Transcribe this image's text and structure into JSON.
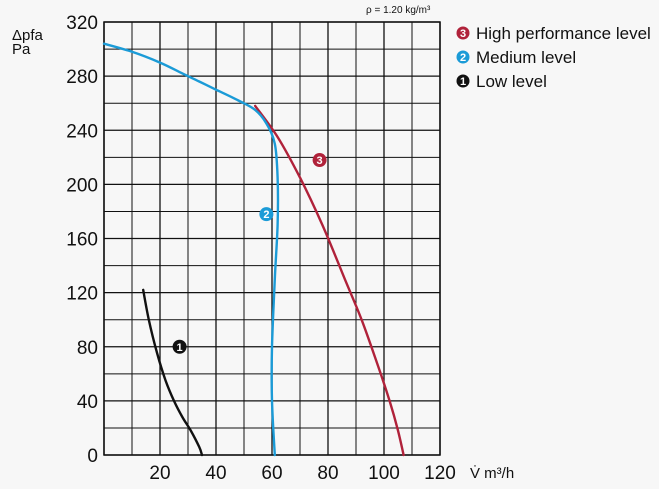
{
  "chart_data": {
    "type": "line",
    "note": "ρ = 1.20 kg/m³",
    "ylabel_line1": "Δpfa",
    "ylabel_line2": "Pa",
    "xlabel": "V̇ m³/h",
    "xlim": [
      0,
      120
    ],
    "ylim": [
      0,
      320
    ],
    "x_ticks": [
      "20",
      "40",
      "60",
      "80",
      "100",
      "120"
    ],
    "y_ticks": [
      "0",
      "40",
      "80",
      "120",
      "160",
      "200",
      "240",
      "280",
      "320"
    ],
    "grid": true,
    "legend_position": "top-right",
    "series": [
      {
        "name": "High performance level",
        "marker_number": "3",
        "color": "#b0223a",
        "x": [
          54,
          62,
          70,
          78,
          86,
          92,
          98,
          102,
          105,
          107
        ],
        "y": [
          258,
          235,
          205,
          170,
          130,
          100,
          65,
          40,
          18,
          0
        ]
      },
      {
        "name": "Medium level",
        "marker_number": "2",
        "color": "#1b9bd7",
        "x": [
          0,
          10,
          20,
          28,
          34,
          40,
          48,
          54,
          58,
          61,
          62,
          62,
          61,
          60,
          60,
          61
        ],
        "y": [
          304,
          298,
          290,
          282,
          276,
          270,
          262,
          255,
          245,
          230,
          205,
          170,
          130,
          80,
          40,
          0
        ]
      },
      {
        "name": "Low level",
        "marker_number": "1",
        "color": "#111111",
        "x": [
          14,
          16,
          19,
          22,
          25,
          28,
          31,
          34,
          35
        ],
        "y": [
          122,
          100,
          75,
          55,
          40,
          28,
          18,
          6,
          0
        ]
      }
    ],
    "curve_markers": [
      {
        "number": "3",
        "color": "#b0223a",
        "x": 77,
        "y": 218
      },
      {
        "number": "2",
        "color": "#1b9bd7",
        "x": 58,
        "y": 178
      },
      {
        "number": "1",
        "color": "#111111",
        "x": 27,
        "y": 80
      }
    ]
  }
}
